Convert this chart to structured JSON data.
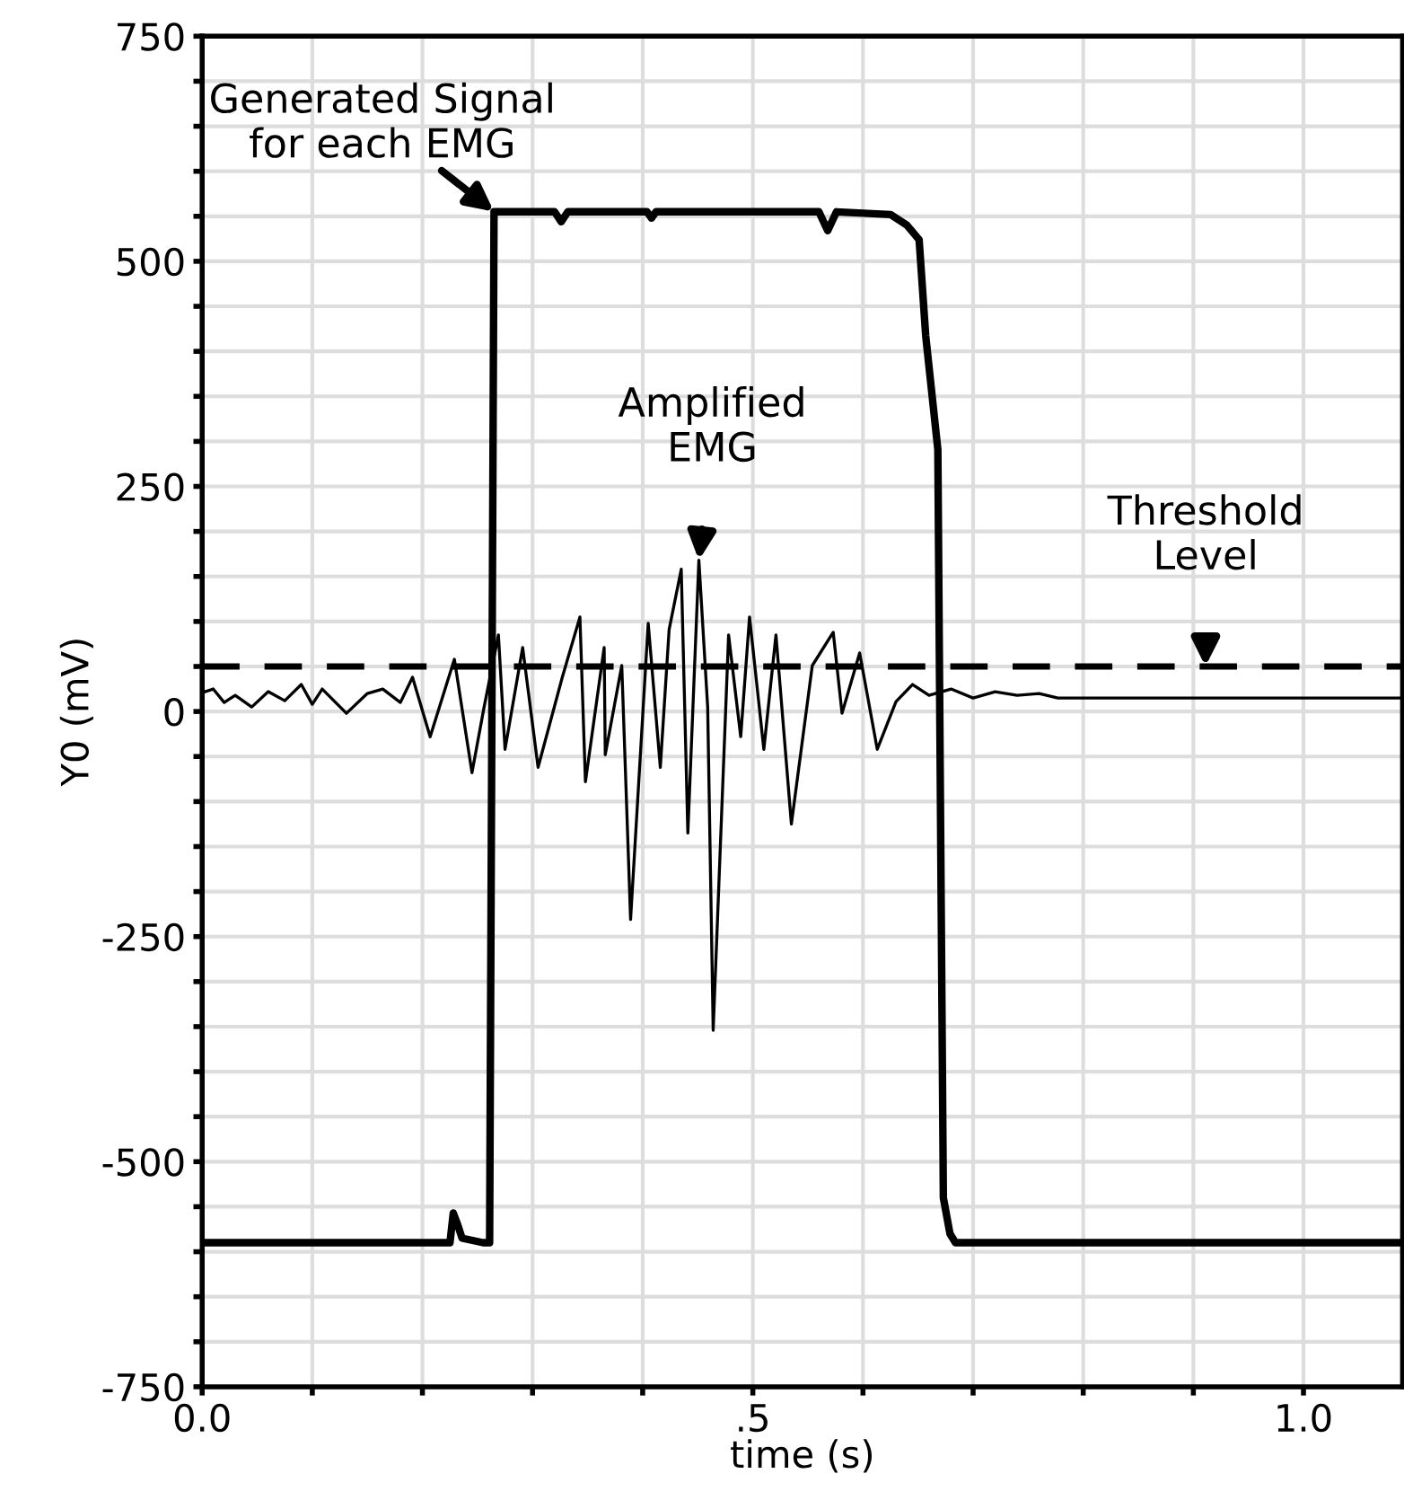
{
  "chart_data": {
    "type": "line",
    "xlabel": "time (s)",
    "ylabel": "Y0 (mV)",
    "xlim": [
      0,
      1.09
    ],
    "ylim": [
      -750,
      750
    ],
    "xticks": [
      {
        "value": 0,
        "label": "0.0"
      },
      {
        "value": 0.1,
        "label": null
      },
      {
        "value": 0.2,
        "label": null
      },
      {
        "value": 0.3,
        "label": null
      },
      {
        "value": 0.4,
        "label": null
      },
      {
        "value": 0.5,
        "label": ".5"
      },
      {
        "value": 0.6,
        "label": null
      },
      {
        "value": 0.7,
        "label": null
      },
      {
        "value": 0.8,
        "label": null
      },
      {
        "value": 0.9,
        "label": null
      },
      {
        "value": 1.0,
        "label": "1.0"
      }
    ],
    "yticks": [
      -750,
      {
        "value": -700,
        "label": null
      },
      {
        "value": -650,
        "label": null
      },
      {
        "value": -600,
        "label": null
      },
      {
        "value": -550,
        "label": null
      },
      -500,
      {
        "value": -450,
        "label": null
      },
      {
        "value": -400,
        "label": null
      },
      {
        "value": -350,
        "label": null
      },
      {
        "value": -300,
        "label": null
      },
      -250,
      {
        "value": -200,
        "label": null
      },
      {
        "value": -150,
        "label": null
      },
      {
        "value": -100,
        "label": null
      },
      {
        "value": -50,
        "label": null
      },
      0,
      {
        "value": 50,
        "label": null
      },
      {
        "value": 100,
        "label": null
      },
      {
        "value": 150,
        "label": null
      },
      {
        "value": 200,
        "label": null
      },
      250,
      {
        "value": 300,
        "label": null
      },
      {
        "value": 350,
        "label": null
      },
      {
        "value": 400,
        "label": null
      },
      {
        "value": 450,
        "label": null
      },
      500,
      {
        "value": 550,
        "label": null
      },
      {
        "value": 600,
        "label": null
      },
      {
        "value": 650,
        "label": null
      },
      {
        "value": 700,
        "label": null
      },
      750
    ],
    "grid": true,
    "marker": "none",
    "series": [
      {
        "color": "#000000",
        "line_style": "solid",
        "x": [
          0,
          0.225,
          0.228,
          0.232,
          0.236,
          0.255,
          0.261,
          0.265,
          0.32,
          0.326,
          0.332,
          0.404,
          0.408,
          0.412,
          0.56,
          0.568,
          0.576,
          0.625,
          0.64,
          0.651,
          0.657,
          0.668,
          0.673,
          0.679,
          0.684,
          1.09
        ],
        "values": [
          -590,
          -590,
          -557,
          -570,
          -585,
          -590,
          -590,
          555,
          555,
          544,
          555,
          555,
          548,
          555,
          555,
          534,
          555,
          552,
          540,
          524,
          417,
          291,
          -540,
          -580,
          -590,
          -590
        ]
      },
      {
        "color": "#000000",
        "line_style": "solid",
        "x": [
          0,
          0.01,
          0.02,
          0.03,
          0.045,
          0.06,
          0.075,
          0.09,
          0.1,
          0.109,
          0.131,
          0.15,
          0.164,
          0.18,
          0.191,
          0.207,
          0.229,
          0.245,
          0.256,
          0.269,
          0.275,
          0.291,
          0.305,
          0.327,
          0.343,
          0.348,
          0.365,
          0.366,
          0.381,
          0.389,
          0.405,
          0.416,
          0.424,
          0.435,
          0.441,
          0.451,
          0.459,
          0.464,
          0.478,
          0.489,
          0.497,
          0.51,
          0.521,
          0.535,
          0.554,
          0.573,
          0.581,
          0.597,
          0.613,
          0.63,
          0.645,
          0.66,
          0.68,
          0.7,
          0.72,
          0.74,
          0.76,
          0.777,
          1.09
        ],
        "values": [
          21,
          25,
          10,
          18,
          5,
          22,
          12,
          30,
          8,
          25,
          -2,
          20,
          25,
          10,
          38,
          -28,
          58,
          -68,
          5,
          85,
          -42,
          71,
          -62,
          38,
          105,
          -78,
          71,
          -48,
          51,
          -231,
          98,
          -62,
          91,
          158,
          -135,
          168,
          5,
          -354,
          85,
          -28,
          105,
          -42,
          85,
          -125,
          51,
          88,
          -2,
          65,
          -42,
          11,
          30,
          18,
          25,
          15,
          22,
          18,
          20,
          15,
          15
        ]
      }
    ],
    "ref_lines": [
      {
        "axis": "y",
        "value": 50,
        "color": "#000000",
        "line_style": "dashed"
      }
    ],
    "annotations": [
      {
        "text": "Generated Signal\nfor each EMG",
        "x": 0.265,
        "y": 555
      },
      {
        "text": "Amplified\nEMG",
        "x": 0.451,
        "y": 168
      },
      {
        "text": "Threshold\nLevel",
        "x": 0.911,
        "y": 50
      }
    ]
  }
}
